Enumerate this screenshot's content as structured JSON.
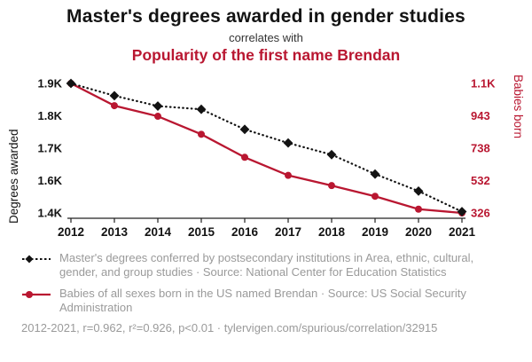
{
  "header": {
    "title": "Master's degrees awarded in gender studies",
    "subtitle": "correlates with",
    "secondary_title": "Popularity of the first name Brendan"
  },
  "colors": {
    "accent_red": "#b91731",
    "series_black": "#131313",
    "legend_gray": "#9a9a9a"
  },
  "chart_data": {
    "type": "line",
    "x": [
      2012,
      2013,
      2014,
      2015,
      2016,
      2017,
      2018,
      2019,
      2020,
      2021
    ],
    "series": [
      {
        "name": "Master's degrees conferred in Area, ethnic, cultural, gender, and group studies",
        "axis": "left",
        "color": "#131313",
        "style": "dotted-diamond",
        "values": [
          1900,
          1862,
          1830,
          1820,
          1758,
          1716,
          1680,
          1620,
          1535,
          1408
        ]
      },
      {
        "name": "Babies of all sexes born in the US named Brendan",
        "axis": "right",
        "color": "#b91731",
        "style": "solid-circle",
        "values": [
          1100,
          992,
          940,
          826,
          680,
          565,
          500,
          432,
          350,
          326
        ]
      }
    ],
    "left_axis": {
      "label": "Degrees awarded",
      "ticks": [
        "1.9K",
        "1.8K",
        "1.7K",
        "1.6K",
        "1.4K"
      ],
      "tick_values": [
        1900,
        1800,
        1700,
        1600,
        1400
      ]
    },
    "right_axis": {
      "label": "Babies born",
      "ticks": [
        "1.1K",
        "943",
        "738",
        "532",
        "326"
      ],
      "tick_values": [
        1100,
        943,
        738,
        532,
        326
      ]
    },
    "grid": false,
    "legend_position": "bottom"
  },
  "legend": {
    "series1": "Master's degrees conferred by postsecondary institutions in Area, ethnic, cultural, gender, and group studies · Source: National Center for Education Statistics",
    "series2": "Babies of all sexes born in the US named Brendan · Source: US Social Security Administration",
    "stats": "2012-2021, r=0.962, r²=0.926, p<0.01 · tylervigen.com/spurious/correlation/32915"
  }
}
